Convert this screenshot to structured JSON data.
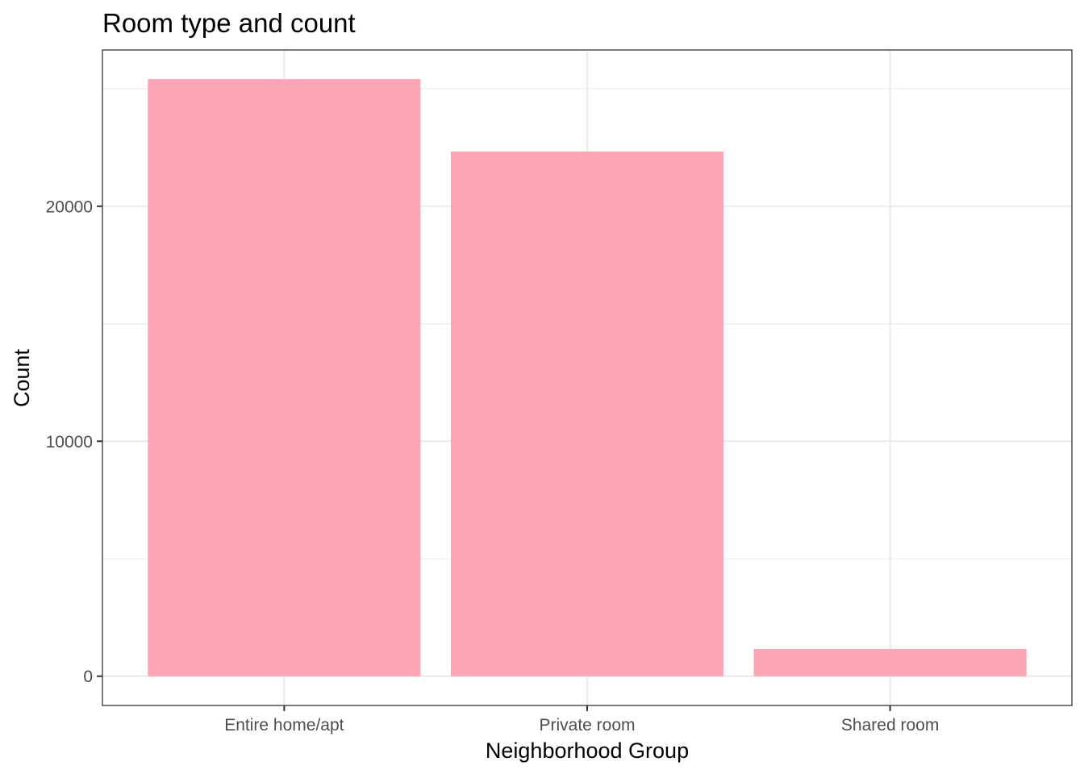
{
  "chart_data": {
    "type": "bar",
    "title": "Room type and count",
    "xlabel": "Neighborhood Group",
    "ylabel": "Count",
    "categories": [
      "Entire home/apt",
      "Private room",
      "Shared room"
    ],
    "values": [
      25409,
      22326,
      1160
    ],
    "ylim": [
      -1244,
      26650
    ],
    "y_ticks": [
      0,
      10000,
      20000
    ],
    "y_minor_ticks": [
      5000,
      15000,
      25000
    ],
    "y_tick_labels": [
      "0",
      "10000",
      "20000"
    ],
    "grid": true,
    "legend": "none",
    "colors": {
      "bar": "#fca6b5",
      "grid": "#ebebeb",
      "panel_border": "#333333",
      "tick_label": "#4d4d4d"
    }
  }
}
